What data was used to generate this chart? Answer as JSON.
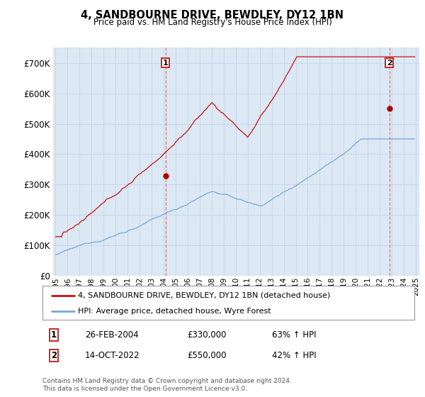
{
  "title": "4, SANDBOURNE DRIVE, BEWDLEY, DY12 1BN",
  "subtitle": "Price paid vs. HM Land Registry's House Price Index (HPI)",
  "legend_line1": "4, SANDBOURNE DRIVE, BEWDLEY, DY12 1BN (detached house)",
  "legend_line2": "HPI: Average price, detached house, Wyre Forest",
  "annotation1_label": "1",
  "annotation1_date": "26-FEB-2004",
  "annotation1_price": "£330,000",
  "annotation1_hpi": "63% ↑ HPI",
  "annotation2_label": "2",
  "annotation2_date": "14-OCT-2022",
  "annotation2_price": "£550,000",
  "annotation2_hpi": "42% ↑ HPI",
  "footer": "Contains HM Land Registry data © Crown copyright and database right 2024.\nThis data is licensed under the Open Government Licence v3.0.",
  "hpi_color": "#7aa8d2",
  "price_color": "#cc1111",
  "marker_color": "#aa0000",
  "grid_color": "#c8d8e8",
  "bg_plot_color": "#dce8f4",
  "background_color": "#ffffff",
  "ylim": [
    0,
    750000
  ],
  "yticks": [
    0,
    100000,
    200000,
    300000,
    400000,
    500000,
    600000,
    700000
  ],
  "ytick_labels": [
    "£0",
    "£100K",
    "£200K",
    "£300K",
    "£400K",
    "£500K",
    "£600K",
    "£700K"
  ],
  "sale1_x": 2004.15,
  "sale1_y": 330000,
  "sale2_x": 2022.79,
  "sale2_y": 550000,
  "xmin": 1994.8,
  "xmax": 2025.3
}
